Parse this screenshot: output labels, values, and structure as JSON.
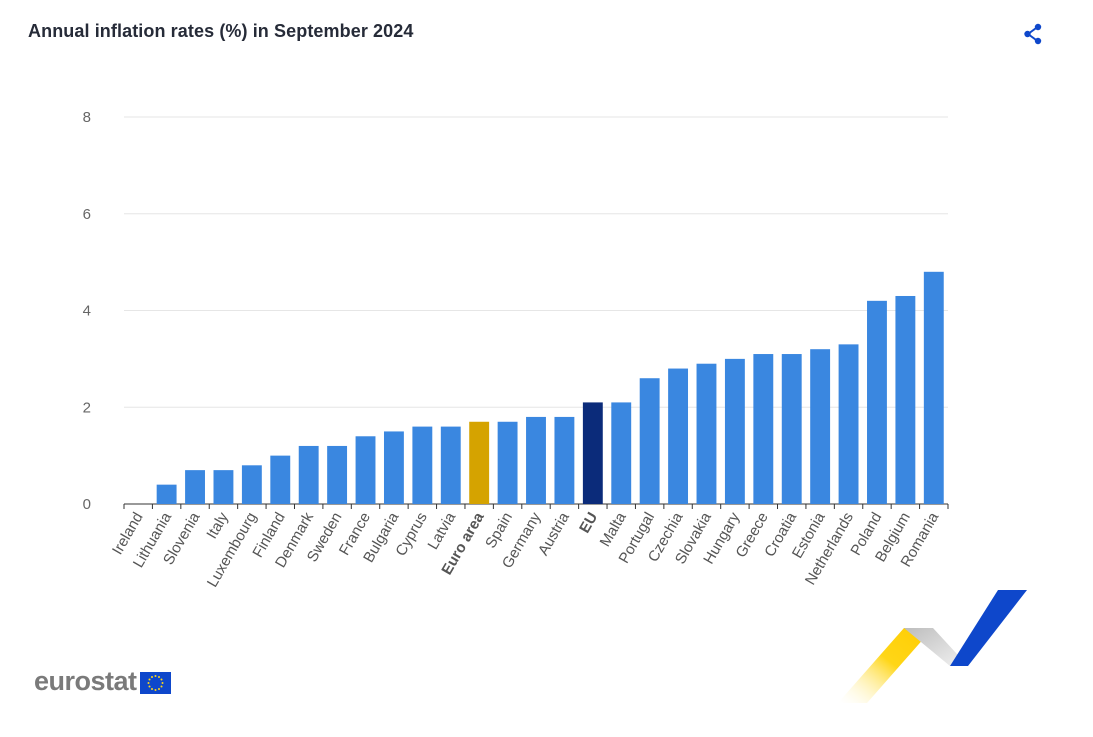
{
  "page": {
    "title": "Annual inflation rates (%) in September 2024",
    "logo_text": "eurostat",
    "share_icon": "share-icon"
  },
  "colors": {
    "bar_default": "#3a87e0",
    "bar_euro_area": "#d5a300",
    "bar_eu": "#0b2b7a",
    "gridline": "#e6e6e6",
    "axis": "#333333",
    "share_icon": "#0e47cb"
  },
  "chart_data": {
    "type": "bar",
    "title": "Annual inflation rates (%) in September 2024",
    "xlabel": "",
    "ylabel": "",
    "ylim": [
      0,
      8
    ],
    "yticks": [
      0,
      2,
      4,
      6,
      8
    ],
    "grid": true,
    "categories": [
      "Ireland",
      "Lithuania",
      "Slovenia",
      "Italy",
      "Luxembourg",
      "Finland",
      "Denmark",
      "Sweden",
      "France",
      "Bulgaria",
      "Cyprus",
      "Latvia",
      "Euro area",
      "Spain",
      "Germany",
      "Austria",
      "EU",
      "Malta",
      "Portugal",
      "Czechia",
      "Slovakia",
      "Hungary",
      "Greece",
      "Croatia",
      "Estonia",
      "Netherlands",
      "Poland",
      "Belgium",
      "Romania"
    ],
    "values": [
      0.0,
      0.4,
      0.7,
      0.7,
      0.8,
      1.0,
      1.2,
      1.2,
      1.4,
      1.5,
      1.6,
      1.6,
      1.7,
      1.7,
      1.8,
      1.8,
      2.1,
      2.1,
      2.6,
      2.8,
      2.9,
      3.0,
      3.1,
      3.1,
      3.2,
      3.3,
      4.2,
      4.3,
      4.8
    ],
    "highlighted": {
      "Euro area": "bar_euro_area",
      "EU": "bar_eu"
    }
  }
}
